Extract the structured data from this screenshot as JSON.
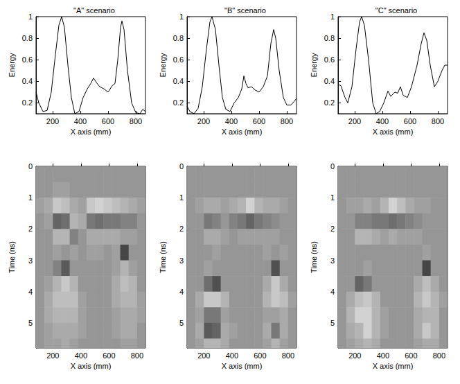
{
  "chart_data": [
    {
      "type": "line",
      "title": "\"A\" scenario",
      "xlabel": "X axis (mm)",
      "ylabel": "Energy",
      "color": "#000000",
      "x": [
        80,
        100,
        130,
        160,
        190,
        220,
        245,
        265,
        285,
        310,
        335,
        360,
        390,
        420,
        450,
        475,
        495,
        515,
        540,
        570,
        600,
        630,
        650,
        670,
        690,
        700,
        715,
        740,
        770,
        800,
        830,
        850,
        870
      ],
      "values": [
        0.3,
        0.2,
        0.12,
        0.13,
        0.3,
        0.65,
        0.92,
        1.0,
        0.9,
        0.55,
        0.25,
        0.1,
        0.12,
        0.25,
        0.33,
        0.38,
        0.43,
        0.39,
        0.35,
        0.33,
        0.3,
        0.36,
        0.38,
        0.6,
        0.9,
        0.96,
        0.88,
        0.5,
        0.2,
        0.11,
        0.1,
        0.14,
        0.12
      ],
      "xlim": [
        80,
        870
      ],
      "ylim": [
        0.1,
        1
      ],
      "xticks": [
        200,
        400,
        600,
        800
      ],
      "yticks": [
        0.2,
        0.4,
        0.6,
        0.8,
        1
      ]
    },
    {
      "type": "line",
      "title": "\"B\" scenario",
      "xlabel": "X axis (mm)",
      "ylabel": "Energy",
      "color": "#000000",
      "x": [
        80,
        100,
        130,
        160,
        190,
        220,
        245,
        260,
        285,
        310,
        335,
        360,
        390,
        420,
        450,
        475,
        490,
        505,
        520,
        545,
        570,
        600,
        630,
        660,
        685,
        705,
        720,
        745,
        775,
        800,
        830,
        850,
        870
      ],
      "values": [
        0.17,
        0.12,
        0.1,
        0.15,
        0.35,
        0.7,
        0.95,
        1.0,
        0.88,
        0.55,
        0.25,
        0.14,
        0.12,
        0.2,
        0.25,
        0.33,
        0.45,
        0.38,
        0.34,
        0.35,
        0.32,
        0.3,
        0.35,
        0.45,
        0.75,
        0.88,
        0.8,
        0.5,
        0.25,
        0.18,
        0.18,
        0.21,
        0.24
      ],
      "xlim": [
        80,
        870
      ],
      "ylim": [
        0.1,
        1
      ],
      "xticks": [
        200,
        400,
        600,
        800
      ],
      "yticks": [
        0.2,
        0.4,
        0.6,
        0.8,
        1
      ]
    },
    {
      "type": "line",
      "title": "\"C\" scenario",
      "xlabel": "X axis (mm)",
      "ylabel": "Energy",
      "color": "#000000",
      "x": [
        80,
        100,
        130,
        150,
        180,
        210,
        235,
        250,
        270,
        300,
        330,
        355,
        380,
        410,
        440,
        460,
        490,
        510,
        530,
        550,
        580,
        610,
        650,
        680,
        700,
        720,
        745,
        775,
        800,
        830,
        850,
        870
      ],
      "values": [
        0.37,
        0.36,
        0.25,
        0.2,
        0.35,
        0.7,
        0.95,
        1.0,
        0.92,
        0.6,
        0.2,
        0.1,
        0.12,
        0.2,
        0.31,
        0.26,
        0.3,
        0.29,
        0.35,
        0.27,
        0.25,
        0.35,
        0.55,
        0.75,
        0.85,
        0.78,
        0.55,
        0.35,
        0.4,
        0.5,
        0.55,
        0.55
      ],
      "xlim": [
        80,
        870
      ],
      "ylim": [
        0.1,
        1
      ],
      "xticks": [
        200,
        400,
        600,
        800
      ],
      "yticks": [
        0.2,
        0.4,
        0.6,
        0.8,
        1
      ]
    },
    {
      "type": "heatmap",
      "xlabel": "X axis (mm)",
      "ylabel": "Time (ns)",
      "x": [
        110,
        170,
        230,
        290,
        350,
        410,
        470,
        530,
        590,
        650,
        710,
        770,
        830
      ],
      "y": [
        0.25,
        0.75,
        1.25,
        1.75,
        2.25,
        2.75,
        3.25,
        3.75,
        4.25,
        4.75,
        5.25,
        5.75
      ],
      "cells": [
        [
          0,
          0,
          0,
          0,
          0,
          0,
          0,
          0,
          0,
          0,
          0,
          0,
          0
        ],
        [
          0,
          0,
          0.1,
          0.1,
          0,
          0,
          0,
          0,
          0,
          0,
          0,
          0,
          0
        ],
        [
          0.1,
          0.2,
          0.5,
          0.4,
          0.2,
          0.1,
          0.5,
          0.6,
          0.5,
          0.4,
          0.3,
          0.2,
          0.1
        ],
        [
          0,
          0.1,
          -0.5,
          -0.4,
          0.3,
          0.2,
          -0.3,
          -0.4,
          -0.3,
          -0.3,
          -0.2,
          -0.2,
          0
        ],
        [
          0,
          0,
          0.3,
          0.3,
          -0.2,
          0,
          0.2,
          0.2,
          0.2,
          0.2,
          0.1,
          0.1,
          0
        ],
        [
          0,
          0,
          0.1,
          0,
          0.1,
          0,
          0.1,
          0.1,
          0,
          0.1,
          -0.8,
          0,
          0
        ],
        [
          0,
          0,
          -0.2,
          -0.6,
          0,
          0,
          0,
          0,
          0,
          0.1,
          0.3,
          0.1,
          0
        ],
        [
          0,
          0.1,
          0.3,
          0.5,
          0.3,
          0,
          0,
          0,
          0,
          0.2,
          0.4,
          0.3,
          0
        ],
        [
          0,
          0.2,
          0.4,
          0.4,
          0.4,
          0.1,
          0,
          0,
          0,
          0.2,
          0.3,
          0.3,
          0.1
        ],
        [
          0,
          0.2,
          0.3,
          0.3,
          0.3,
          0.1,
          0,
          0,
          0,
          0.1,
          0.2,
          0.2,
          0.1
        ],
        [
          0,
          0.1,
          0.2,
          0.2,
          0.2,
          0.1,
          0,
          0,
          0,
          0.1,
          0.2,
          0.2,
          0
        ],
        [
          0,
          0.1,
          0.1,
          0.2,
          0.1,
          0,
          0,
          0,
          0,
          0,
          0.1,
          0.1,
          0
        ]
      ],
      "xlim": [
        80,
        860
      ],
      "ylim": [
        5.8,
        0
      ],
      "xticks": [
        200,
        400,
        600,
        800
      ],
      "yticks": [
        0,
        1,
        2,
        3,
        4,
        5
      ]
    },
    {
      "type": "heatmap",
      "xlabel": "X axis (mm)",
      "ylabel": "Time (ns)",
      "x": [
        110,
        170,
        230,
        290,
        350,
        410,
        470,
        530,
        590,
        650,
        710,
        770,
        830
      ],
      "y": [
        0.25,
        0.75,
        1.25,
        1.75,
        2.25,
        2.75,
        3.25,
        3.75,
        4.25,
        4.75,
        5.25,
        5.75
      ],
      "cells": [
        [
          0,
          0,
          0,
          0,
          0,
          0,
          0,
          0,
          0,
          0,
          0,
          0,
          0
        ],
        [
          0,
          0,
          0,
          0,
          0,
          0,
          0,
          0,
          0,
          0,
          0,
          0,
          0
        ],
        [
          0,
          0.1,
          0.2,
          0.2,
          0.1,
          0.2,
          0.3,
          0.6,
          0.3,
          0.2,
          0.2,
          0.1,
          0
        ],
        [
          0,
          0,
          -0.3,
          -0.2,
          0,
          -0.2,
          -0.3,
          -0.5,
          -0.3,
          -0.2,
          -0.1,
          0,
          0
        ],
        [
          0,
          0,
          0.2,
          0.2,
          0.1,
          0,
          0.1,
          0.1,
          0.1,
          0.1,
          0.1,
          0,
          0
        ],
        [
          0,
          0,
          0,
          0.1,
          0,
          0,
          0,
          0,
          0,
          0.1,
          0,
          0.1,
          0
        ],
        [
          0,
          0,
          0.1,
          0,
          0,
          0,
          0,
          0,
          0,
          0,
          -0.7,
          0,
          0
        ],
        [
          0,
          0,
          -0.4,
          -0.7,
          0,
          0,
          0,
          0,
          0,
          0.2,
          0.5,
          0.2,
          0
        ],
        [
          0,
          0.2,
          0.5,
          0.5,
          0.3,
          0,
          0,
          0,
          0,
          0.3,
          0.5,
          0.4,
          0.1
        ],
        [
          0,
          0.1,
          -0.3,
          -0.3,
          0.1,
          0,
          0,
          0,
          0,
          0.1,
          0.1,
          0.2,
          0
        ],
        [
          0,
          0.2,
          -0.6,
          -0.5,
          0.2,
          0.1,
          0,
          0,
          0,
          0.2,
          -0.3,
          0.2,
          0
        ],
        [
          0,
          0.1,
          0.3,
          0.3,
          0.2,
          0,
          0,
          0,
          0,
          0.1,
          0.3,
          0.1,
          0
        ]
      ],
      "xlim": [
        80,
        860
      ],
      "ylim": [
        5.8,
        0
      ],
      "xticks": [
        200,
        400,
        600,
        800
      ],
      "yticks": [
        0,
        1,
        2,
        3,
        4,
        5
      ]
    },
    {
      "type": "heatmap",
      "xlabel": "X axis (mm)",
      "ylabel": "Time (ns)",
      "x": [
        110,
        170,
        230,
        290,
        350,
        410,
        470,
        530,
        590,
        650,
        710,
        770,
        830
      ],
      "y": [
        0.25,
        0.75,
        1.25,
        1.75,
        2.25,
        2.75,
        3.25,
        3.75,
        4.25,
        4.75,
        5.25,
        5.75
      ],
      "cells": [
        [
          0,
          0,
          0,
          0,
          0,
          0,
          0,
          0,
          0,
          0,
          0,
          0,
          0
        ],
        [
          0,
          0,
          0,
          0,
          0,
          0,
          0,
          0,
          0,
          0,
          0,
          0,
          0
        ],
        [
          0,
          0.1,
          0.1,
          0.2,
          0.1,
          0.3,
          0.6,
          0.4,
          0.2,
          0.1,
          0.1,
          0,
          0
        ],
        [
          0,
          0,
          -0.2,
          -0.2,
          -0.3,
          -0.3,
          -0.4,
          -0.3,
          -0.2,
          -0.1,
          0,
          0,
          0
        ],
        [
          0,
          0,
          0.3,
          0.3,
          0.2,
          0.1,
          0.2,
          0.1,
          0.1,
          0.1,
          0,
          0,
          0
        ],
        [
          0,
          0,
          0,
          0,
          0,
          0,
          0,
          0,
          0,
          0,
          0.1,
          0,
          0
        ],
        [
          0,
          0,
          0,
          0.1,
          0,
          0,
          0,
          0,
          0,
          0,
          -0.8,
          0,
          0
        ],
        [
          0,
          0,
          -0.5,
          -0.3,
          0,
          0,
          0,
          0,
          0,
          0.2,
          0.4,
          0.2,
          0
        ],
        [
          0,
          0.2,
          0.4,
          0.5,
          0.3,
          0,
          0,
          0,
          0,
          0.3,
          0.5,
          0.3,
          0.1
        ],
        [
          0,
          0.3,
          0.6,
          0.6,
          0.3,
          0.1,
          0,
          0,
          0,
          0.2,
          0.3,
          0.3,
          0
        ],
        [
          0,
          0.2,
          0.3,
          0.6,
          0.3,
          0.1,
          0,
          0,
          0,
          0.2,
          0.5,
          0.3,
          0
        ],
        [
          0,
          0.1,
          0.2,
          0.3,
          0.2,
          0,
          0,
          0,
          0,
          0.1,
          0.2,
          0.2,
          0
        ]
      ],
      "xlim": [
        80,
        860
      ],
      "ylim": [
        5.8,
        0
      ],
      "xticks": [
        200,
        400,
        600,
        800
      ],
      "yticks": [
        0,
        1,
        2,
        3,
        4,
        5
      ]
    }
  ]
}
